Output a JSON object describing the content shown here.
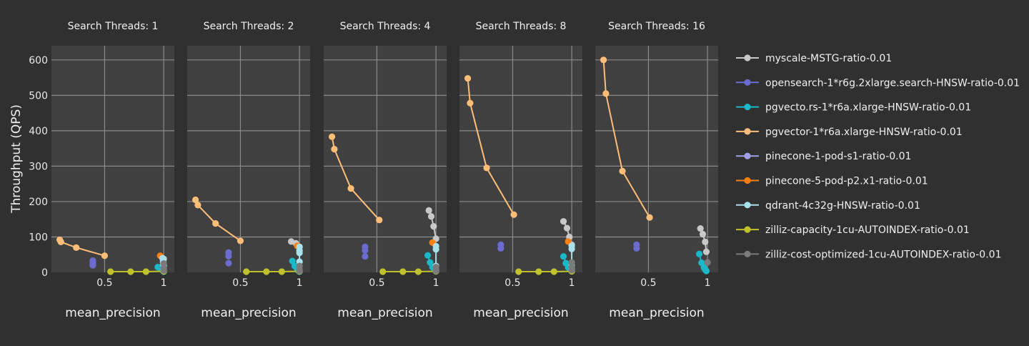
{
  "chart_data": {
    "type": "scatter",
    "ylabel": "Throughput (QPS)",
    "xlabel": "mean_precision",
    "xticks": [
      0.5,
      1
    ],
    "yticks": [
      0,
      100,
      200,
      300,
      400,
      500,
      600
    ],
    "ylim": [
      0,
      640
    ],
    "xlim": [
      0.05,
      1.09
    ],
    "grid": true,
    "legend_position": "right",
    "panels": [
      {
        "title": "Search Threads: 1",
        "series": [
          {
            "name": "myscale-MSTG-ratio-0.01",
            "color": "#c8c8c8",
            "mode": "lines+markers",
            "points": [
              [
                1.0,
                38
              ],
              [
                0.995,
                28
              ],
              [
                0.99,
                18
              ]
            ]
          },
          {
            "name": "opensearch-1*r6g.2xlarge.search-HNSW-ratio-0.01",
            "color": "#6b6bd0",
            "mode": "markers",
            "points": [
              [
                0.4,
                33
              ],
              [
                0.4,
                26
              ],
              [
                0.4,
                20
              ]
            ]
          },
          {
            "name": "pgvecto.rs-1*r6a.xlarge-HNSW-ratio-0.01",
            "color": "#1ab8c8",
            "mode": "lines+markers",
            "points": [
              [
                0.95,
                15
              ],
              [
                0.97,
                12
              ],
              [
                0.99,
                8
              ],
              [
                0.995,
                4
              ],
              [
                1.0,
                2
              ]
            ]
          },
          {
            "name": "pgvector-1*r6a.xlarge-HNSW-ratio-0.01",
            "color": "#ffbe78",
            "mode": "lines+markers",
            "points": [
              [
                0.12,
                92
              ],
              [
                0.13,
                86
              ],
              [
                0.26,
                70
              ],
              [
                0.5,
                47
              ]
            ]
          },
          {
            "name": "pinecone-1-pod-s1-ratio-0.01",
            "color": "#9fa0e8",
            "mode": "markers",
            "points": []
          },
          {
            "name": "pinecone-5-pod-p2.x1-ratio-0.01",
            "color": "#ff7f0e",
            "mode": "markers",
            "points": [
              [
                0.97,
                47
              ]
            ]
          },
          {
            "name": "qdrant-4c32g-HNSW-ratio-0.01",
            "color": "#a8e0ec",
            "mode": "lines+markers",
            "points": [
              [
                0.99,
                40
              ],
              [
                0.995,
                33
              ],
              [
                1.0,
                20
              ],
              [
                1.0,
                10
              ]
            ]
          },
          {
            "name": "zilliz-capacity-1cu-AUTOINDEX-ratio-0.01",
            "color": "#bfc22a",
            "mode": "lines+markers",
            "points": [
              [
                0.55,
                2
              ],
              [
                0.72,
                2
              ],
              [
                0.85,
                2
              ],
              [
                1.0,
                3
              ]
            ]
          },
          {
            "name": "zilliz-cost-optimized-1cu-AUTOINDEX-ratio-0.01",
            "color": "#7a7a7a",
            "mode": "lines+markers",
            "points": [
              [
                1.0,
                25
              ],
              [
                1.0,
                12
              ],
              [
                1.0,
                5
              ]
            ]
          }
        ]
      },
      {
        "title": "Search Threads: 2",
        "series": [
          {
            "name": "myscale-MSTG-ratio-0.01",
            "color": "#c8c8c8",
            "mode": "lines+markers",
            "points": [
              [
                0.93,
                87
              ],
              [
                0.97,
                82
              ],
              [
                1.0,
                72
              ]
            ]
          },
          {
            "name": "opensearch-1*r6g.2xlarge.search-HNSW-ratio-0.01",
            "color": "#6b6bd0",
            "mode": "markers",
            "points": [
              [
                0.4,
                56
              ],
              [
                0.4,
                46
              ],
              [
                0.4,
                26
              ]
            ]
          },
          {
            "name": "pgvecto.rs-1*r6a.xlarge-HNSW-ratio-0.01",
            "color": "#1ab8c8",
            "mode": "lines+markers",
            "points": [
              [
                0.94,
                32
              ],
              [
                0.96,
                18
              ],
              [
                0.98,
                10
              ],
              [
                0.99,
                5
              ],
              [
                1.0,
                2
              ]
            ]
          },
          {
            "name": "pgvector-1*r6a.xlarge-HNSW-ratio-0.01",
            "color": "#ffbe78",
            "mode": "lines+markers",
            "points": [
              [
                0.12,
                205
              ],
              [
                0.14,
                190
              ],
              [
                0.29,
                138
              ],
              [
                0.5,
                89
              ]
            ]
          },
          {
            "name": "pinecone-1-pod-s1-ratio-0.01",
            "color": "#9fa0e8",
            "mode": "markers",
            "points": []
          },
          {
            "name": "pinecone-5-pod-p2.x1-ratio-0.01",
            "color": "#ff7f0e",
            "mode": "markers",
            "points": [
              [
                0.98,
                75
              ]
            ]
          },
          {
            "name": "qdrant-4c32g-HNSW-ratio-0.01",
            "color": "#a8e0ec",
            "mode": "lines+markers",
            "points": [
              [
                1.0,
                72
              ],
              [
                1.0,
                62
              ],
              [
                1.0,
                55
              ],
              [
                1.0,
                30
              ]
            ]
          },
          {
            "name": "zilliz-capacity-1cu-AUTOINDEX-ratio-0.01",
            "color": "#bfc22a",
            "mode": "lines+markers",
            "points": [
              [
                0.55,
                2
              ],
              [
                0.72,
                2
              ],
              [
                0.85,
                2
              ],
              [
                1.0,
                3
              ]
            ]
          },
          {
            "name": "zilliz-cost-optimized-1cu-AUTOINDEX-ratio-0.01",
            "color": "#7a7a7a",
            "mode": "lines+markers",
            "points": [
              [
                1.0,
                18
              ],
              [
                1.0,
                8
              ],
              [
                1.0,
                4
              ]
            ]
          }
        ]
      },
      {
        "title": "Search Threads: 4",
        "series": [
          {
            "name": "myscale-MSTG-ratio-0.01",
            "color": "#c8c8c8",
            "mode": "lines+markers",
            "points": [
              [
                0.94,
                175
              ],
              [
                0.96,
                158
              ],
              [
                0.98,
                130
              ],
              [
                1.0,
                95
              ]
            ]
          },
          {
            "name": "opensearch-1*r6g.2xlarge.search-HNSW-ratio-0.01",
            "color": "#6b6bd0",
            "mode": "markers",
            "points": [
              [
                0.4,
                72
              ],
              [
                0.4,
                62
              ],
              [
                0.4,
                45
              ]
            ]
          },
          {
            "name": "pgvecto.rs-1*r6a.xlarge-HNSW-ratio-0.01",
            "color": "#1ab8c8",
            "mode": "lines+markers",
            "points": [
              [
                0.93,
                48
              ],
              [
                0.95,
                28
              ],
              [
                0.97,
                15
              ],
              [
                0.99,
                8
              ],
              [
                1.0,
                3
              ]
            ]
          },
          {
            "name": "pgvector-1*r6a.xlarge-HNSW-ratio-0.01",
            "color": "#ffbe78",
            "mode": "lines+markers",
            "points": [
              [
                0.12,
                383
              ],
              [
                0.14,
                348
              ],
              [
                0.28,
                237
              ],
              [
                0.52,
                148
              ]
            ]
          },
          {
            "name": "pinecone-1-pod-s1-ratio-0.01",
            "color": "#9fa0e8",
            "mode": "markers",
            "points": []
          },
          {
            "name": "pinecone-5-pod-p2.x1-ratio-0.01",
            "color": "#ff7f0e",
            "mode": "markers",
            "points": [
              [
                0.97,
                84
              ]
            ]
          },
          {
            "name": "qdrant-4c32g-HNSW-ratio-0.01",
            "color": "#a8e0ec",
            "mode": "lines+markers",
            "points": [
              [
                1.0,
                74
              ],
              [
                1.0,
                65
              ],
              [
                1.0,
                18
              ],
              [
                1.0,
                8
              ]
            ]
          },
          {
            "name": "zilliz-capacity-1cu-AUTOINDEX-ratio-0.01",
            "color": "#bfc22a",
            "mode": "lines+markers",
            "points": [
              [
                0.55,
                2
              ],
              [
                0.72,
                2
              ],
              [
                0.85,
                2
              ],
              [
                1.0,
                3
              ]
            ]
          },
          {
            "name": "zilliz-cost-optimized-1cu-AUTOINDEX-ratio-0.01",
            "color": "#7a7a7a",
            "mode": "lines+markers",
            "points": [
              [
                1.0,
                15
              ],
              [
                1.0,
                8
              ],
              [
                1.0,
                4
              ]
            ]
          }
        ]
      },
      {
        "title": "Search Threads: 8",
        "series": [
          {
            "name": "myscale-MSTG-ratio-0.01",
            "color": "#c8c8c8",
            "mode": "lines+markers",
            "points": [
              [
                0.93,
                144
              ],
              [
                0.96,
                125
              ],
              [
                0.98,
                100
              ],
              [
                1.0,
                78
              ]
            ]
          },
          {
            "name": "opensearch-1*r6g.2xlarge.search-HNSW-ratio-0.01",
            "color": "#6b6bd0",
            "mode": "markers",
            "points": [
              [
                0.4,
                78
              ],
              [
                0.4,
                68
              ]
            ]
          },
          {
            "name": "pgvecto.rs-1*r6a.xlarge-HNSW-ratio-0.01",
            "color": "#1ab8c8",
            "mode": "lines+markers",
            "points": [
              [
                0.93,
                45
              ],
              [
                0.95,
                26
              ],
              [
                0.97,
                14
              ],
              [
                0.99,
                7
              ],
              [
                1.0,
                3
              ]
            ]
          },
          {
            "name": "pgvector-1*r6a.xlarge-HNSW-ratio-0.01",
            "color": "#ffbe78",
            "mode": "lines+markers",
            "points": [
              [
                0.12,
                548
              ],
              [
                0.14,
                478
              ],
              [
                0.28,
                295
              ],
              [
                0.51,
                163
              ]
            ]
          },
          {
            "name": "pinecone-1-pod-s1-ratio-0.01",
            "color": "#9fa0e8",
            "mode": "markers",
            "points": []
          },
          {
            "name": "pinecone-5-pod-p2.x1-ratio-0.01",
            "color": "#ff7f0e",
            "mode": "markers",
            "points": [
              [
                0.97,
                87
              ]
            ]
          },
          {
            "name": "qdrant-4c32g-HNSW-ratio-0.01",
            "color": "#a8e0ec",
            "mode": "lines+markers",
            "points": [
              [
                1.0,
                75
              ],
              [
                1.0,
                66
              ],
              [
                1.0,
                18
              ],
              [
                1.0,
                10
              ]
            ]
          },
          {
            "name": "zilliz-capacity-1cu-AUTOINDEX-ratio-0.01",
            "color": "#bfc22a",
            "mode": "lines+markers",
            "points": [
              [
                0.55,
                2
              ],
              [
                0.72,
                2
              ],
              [
                0.85,
                2
              ],
              [
                1.0,
                3
              ]
            ]
          },
          {
            "name": "zilliz-cost-optimized-1cu-AUTOINDEX-ratio-0.01",
            "color": "#7a7a7a",
            "mode": "lines+markers",
            "points": [
              [
                1.0,
                28
              ],
              [
                1.0,
                15
              ],
              [
                1.0,
                6
              ]
            ]
          }
        ]
      },
      {
        "title": "Search Threads: 16",
        "series": [
          {
            "name": "myscale-MSTG-ratio-0.01",
            "color": "#c8c8c8",
            "mode": "lines+markers",
            "points": [
              [
                0.94,
                124
              ],
              [
                0.96,
                108
              ],
              [
                0.98,
                86
              ],
              [
                0.99,
                58
              ]
            ]
          },
          {
            "name": "opensearch-1*r6g.2xlarge.search-HNSW-ratio-0.01",
            "color": "#6b6bd0",
            "mode": "markers",
            "points": [
              [
                0.4,
                78
              ],
              [
                0.4,
                68
              ]
            ]
          },
          {
            "name": "pgvecto.rs-1*r6a.xlarge-HNSW-ratio-0.01",
            "color": "#1ab8c8",
            "mode": "lines+markers",
            "points": [
              [
                0.93,
                52
              ],
              [
                0.95,
                27
              ],
              [
                0.97,
                14
              ],
              [
                0.98,
                8
              ],
              [
                0.99,
                4
              ]
            ]
          },
          {
            "name": "pgvector-1*r6a.xlarge-HNSW-ratio-0.01",
            "color": "#ffbe78",
            "mode": "lines+markers",
            "points": [
              [
                0.12,
                600
              ],
              [
                0.14,
                505
              ],
              [
                0.28,
                286
              ],
              [
                0.51,
                155
              ]
            ]
          },
          {
            "name": "pinecone-1-pod-s1-ratio-0.01",
            "color": "#9fa0e8",
            "mode": "markers",
            "points": []
          },
          {
            "name": "pinecone-5-pod-p2.x1-ratio-0.01",
            "color": "#ff7f0e",
            "mode": "markers",
            "points": []
          },
          {
            "name": "qdrant-4c32g-HNSW-ratio-0.01",
            "color": "#a8e0ec",
            "mode": "lines+markers",
            "points": []
          },
          {
            "name": "zilliz-capacity-1cu-AUTOINDEX-ratio-0.01",
            "color": "#bfc22a",
            "mode": "lines+markers",
            "points": []
          },
          {
            "name": "zilliz-cost-optimized-1cu-AUTOINDEX-ratio-0.01",
            "color": "#7a7a7a",
            "mode": "lines+markers",
            "points": [
              [
                1.0,
                28
              ]
            ]
          }
        ]
      }
    ],
    "legend": [
      {
        "name": "myscale-MSTG-ratio-0.01",
        "color": "#c8c8c8"
      },
      {
        "name": "opensearch-1*r6g.2xlarge.search-HNSW-ratio-0.01",
        "color": "#6b6bd0"
      },
      {
        "name": "pgvecto.rs-1*r6a.xlarge-HNSW-ratio-0.01",
        "color": "#1ab8c8"
      },
      {
        "name": "pgvector-1*r6a.xlarge-HNSW-ratio-0.01",
        "color": "#ffbe78"
      },
      {
        "name": "pinecone-1-pod-s1-ratio-0.01",
        "color": "#9fa0e8"
      },
      {
        "name": "pinecone-5-pod-p2.x1-ratio-0.01",
        "color": "#ff7f0e"
      },
      {
        "name": "qdrant-4c32g-HNSW-ratio-0.01",
        "color": "#a8e0ec"
      },
      {
        "name": "zilliz-capacity-1cu-AUTOINDEX-ratio-0.01",
        "color": "#bfc22a"
      },
      {
        "name": "zilliz-cost-optimized-1cu-AUTOINDEX-ratio-0.01",
        "color": "#7a7a7a"
      }
    ]
  }
}
